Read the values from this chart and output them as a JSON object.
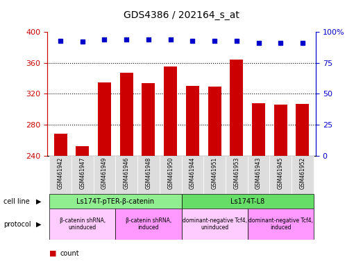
{
  "title": "GDS4386 / 202164_s_at",
  "samples": [
    "GSM461942",
    "GSM461947",
    "GSM461949",
    "GSM461946",
    "GSM461948",
    "GSM461950",
    "GSM461944",
    "GSM461951",
    "GSM461953",
    "GSM461943",
    "GSM461945",
    "GSM461952"
  ],
  "counts": [
    268,
    252,
    335,
    347,
    334,
    355,
    330,
    329,
    364,
    308,
    306,
    307
  ],
  "percentile_ranks": [
    93,
    92,
    94,
    94,
    94,
    94,
    93,
    93,
    93,
    91,
    91,
    91
  ],
  "ylim_left": [
    240,
    400
  ],
  "ylim_right": [
    0,
    100
  ],
  "yticks_left": [
    240,
    280,
    320,
    360,
    400
  ],
  "yticks_right": [
    0,
    25,
    50,
    75,
    100
  ],
  "bar_color": "#cc0000",
  "dot_color": "#0000cc",
  "cell_line_data": [
    {
      "text": "Ls174T-pTER-β-catenin",
      "start": 0,
      "end": 5,
      "color": "#90EE90"
    },
    {
      "text": "Ls174T-L8",
      "start": 6,
      "end": 11,
      "color": "#66DD66"
    }
  ],
  "protocol_data": [
    {
      "text": "β-catenin shRNA,\nuninduced",
      "start": 0,
      "end": 2,
      "color": "#FFCCFF"
    },
    {
      "text": "β-catenin shRNA,\ninduced",
      "start": 3,
      "end": 5,
      "color": "#FF99FF"
    },
    {
      "text": "dominant-negative Tcf4,\nuninduced",
      "start": 6,
      "end": 8,
      "color": "#FFCCFF"
    },
    {
      "text": "dominant-negative Tcf4,\ninduced",
      "start": 9,
      "end": 11,
      "color": "#FF99FF"
    }
  ],
  "sample_bg_color": "#dddddd",
  "grid_yticks": [
    280,
    320,
    360
  ],
  "right_tick_labels": [
    "0",
    "25",
    "50",
    "75",
    "100%"
  ]
}
